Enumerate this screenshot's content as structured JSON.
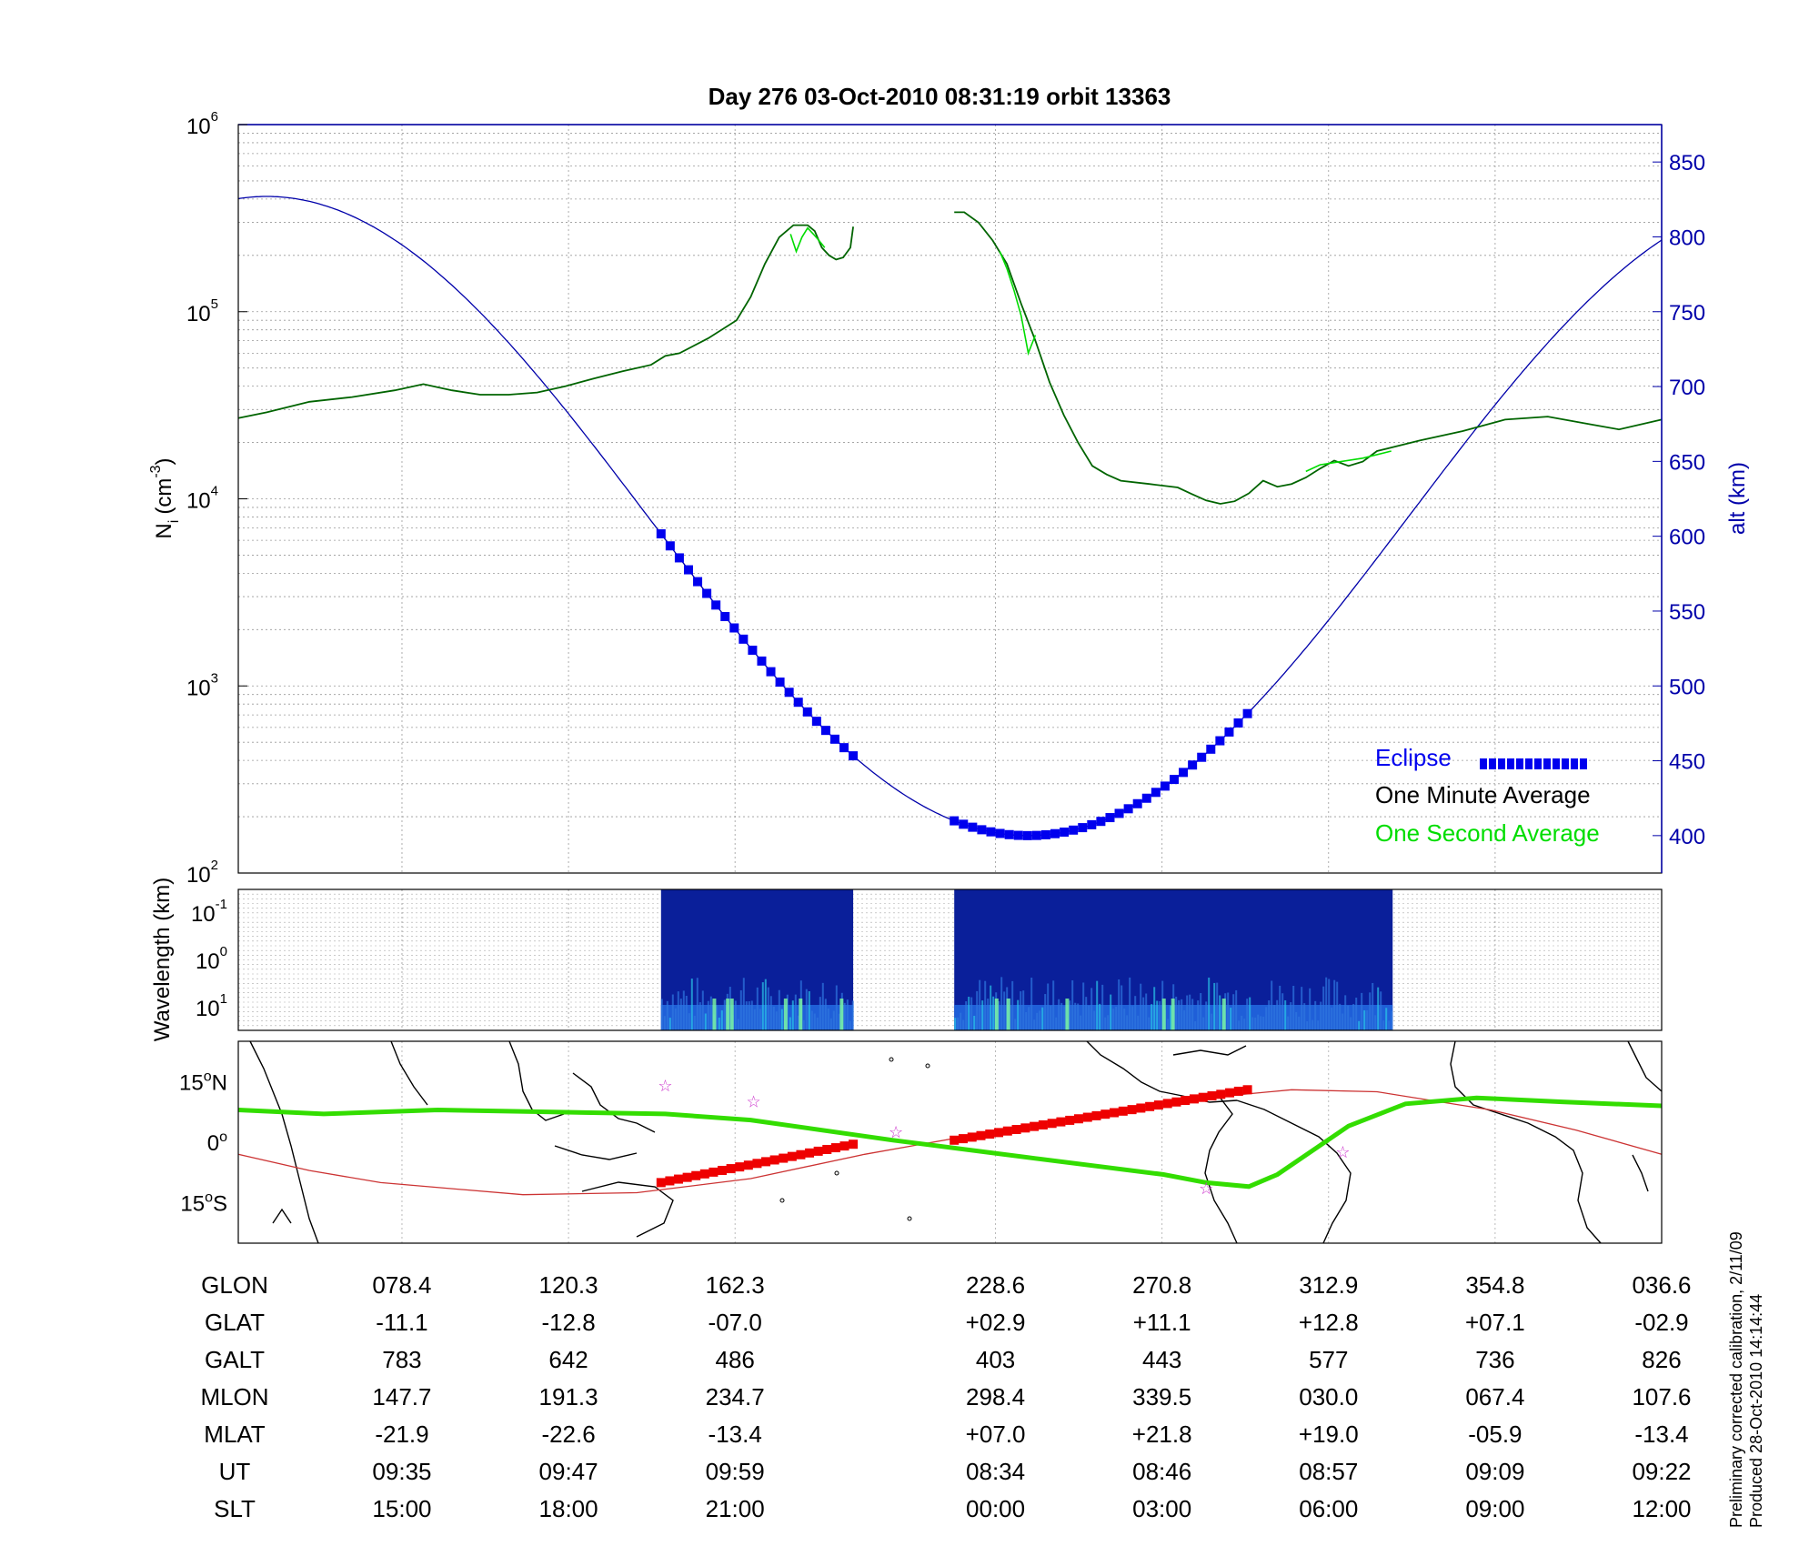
{
  "title": "Day 276  03-Oct-2010 08:31:19   orbit 13363",
  "footer": {
    "line1": "Preliminary corrected calibration, 2/11/09",
    "line2": "Produced 28-Oct-2010 14:14:44"
  },
  "colors": {
    "one_minute": "#006400",
    "one_second": "#00dd00",
    "altitude": "#0000aa",
    "eclipse": "#0000ee",
    "eclipse_map": "#ee0000",
    "ground_track_mag": "#33dd00",
    "ground_track_geo": "#cc3333",
    "star": "#cc33cc"
  },
  "chart_data": [
    {
      "type": "line",
      "name": "ion-density-panel",
      "ylabel": "N",
      "ylabel_sub": "i",
      "ylabel_unit": "(cm",
      "ylabel_sup": "-3",
      "ylabel_close": ")",
      "y_scale": "log",
      "ylim": [
        100,
        1000000
      ],
      "y_ticks": [
        {
          "base": "10",
          "exp": "2",
          "value": 100
        },
        {
          "base": "10",
          "exp": "3",
          "value": 1000
        },
        {
          "base": "10",
          "exp": "4",
          "value": 10000
        },
        {
          "base": "10",
          "exp": "5",
          "value": 100000
        },
        {
          "base": "10",
          "exp": "6",
          "value": 1000000
        }
      ],
      "y2label": "alt (km)",
      "y2lim": [
        375,
        875
      ],
      "y2_ticks": [
        "400",
        "450",
        "500",
        "550",
        "600",
        "650",
        "700",
        "750",
        "800",
        "850"
      ],
      "xlim": [
        0,
        1
      ],
      "grid": true,
      "legend": {
        "position": "bottom-right",
        "entries": [
          {
            "label": "Eclipse",
            "color": "#0000ee"
          },
          {
            "label": "One Minute Average",
            "color": "#000000"
          },
          {
            "label": "One Second Average",
            "color": "#00dd00"
          }
        ]
      },
      "series": [
        {
          "name": "One Minute Average",
          "segments": [
            [
              [
                0.0,
                27000
              ],
              [
                0.02,
                29000
              ],
              [
                0.05,
                33000
              ],
              [
                0.08,
                35000
              ],
              [
                0.11,
                38000
              ],
              [
                0.13,
                41000
              ],
              [
                0.15,
                38000
              ],
              [
                0.17,
                36000
              ],
              [
                0.19,
                36000
              ],
              [
                0.21,
                37000
              ],
              [
                0.23,
                40000
              ],
              [
                0.25,
                44000
              ],
              [
                0.27,
                48000
              ],
              [
                0.29,
                52000
              ],
              [
                0.3,
                58000
              ],
              [
                0.31,
                60000
              ],
              [
                0.33,
                72000
              ],
              [
                0.35,
                90000
              ],
              [
                0.36,
                120000
              ],
              [
                0.37,
                180000
              ],
              [
                0.38,
                250000
              ],
              [
                0.39,
                290000
              ],
              [
                0.4,
                290000
              ],
              [
                0.405,
                270000
              ],
              [
                0.41,
                220000
              ],
              [
                0.415,
                200000
              ],
              [
                0.42,
                190000
              ],
              [
                0.425,
                195000
              ],
              [
                0.43,
                220000
              ],
              [
                0.432,
                285000
              ]
            ],
            [
              [
                0.503,
                340000
              ],
              [
                0.51,
                340000
              ],
              [
                0.52,
                300000
              ],
              [
                0.53,
                240000
              ],
              [
                0.54,
                180000
              ],
              [
                0.55,
                110000
              ],
              [
                0.56,
                70000
              ],
              [
                0.57,
                42000
              ],
              [
                0.58,
                28000
              ],
              [
                0.59,
                20000
              ],
              [
                0.6,
                15000
              ],
              [
                0.61,
                13500
              ],
              [
                0.62,
                12500
              ],
              [
                0.64,
                12000
              ],
              [
                0.66,
                11500
              ],
              [
                0.67,
                10600
              ],
              [
                0.68,
                9800
              ],
              [
                0.69,
                9400
              ],
              [
                0.7,
                9700
              ],
              [
                0.71,
                10700
              ],
              [
                0.72,
                12500
              ],
              [
                0.73,
                11600
              ],
              [
                0.74,
                12000
              ],
              [
                0.75,
                13000
              ],
              [
                0.76,
                14500
              ],
              [
                0.77,
                16000
              ],
              [
                0.78,
                15000
              ],
              [
                0.79,
                15800
              ],
              [
                0.8,
                18000
              ],
              [
                0.83,
                20500
              ],
              [
                0.86,
                23000
              ],
              [
                0.89,
                26500
              ],
              [
                0.92,
                27500
              ],
              [
                0.95,
                25000
              ],
              [
                0.97,
                23500
              ],
              [
                1.0,
                26500
              ]
            ]
          ]
        },
        {
          "name": "One Second Average",
          "segments": [
            [
              [
                0.388,
                260000
              ],
              [
                0.392,
                210000
              ],
              [
                0.396,
                250000
              ],
              [
                0.4,
                280000
              ],
              [
                0.404,
                260000
              ],
              [
                0.408,
                240000
              ],
              [
                0.412,
                220000
              ]
            ],
            [
              [
                0.535,
                210000
              ],
              [
                0.54,
                170000
              ],
              [
                0.545,
                130000
              ],
              [
                0.55,
                95000
              ],
              [
                0.555,
                60000
              ],
              [
                0.56,
                75000
              ]
            ],
            [
              [
                0.75,
                14000
              ],
              [
                0.76,
                15200
              ],
              [
                0.79,
                16500
              ],
              [
                0.81,
                18000
              ]
            ]
          ]
        },
        {
          "name": "altitude",
          "axis": "right",
          "ygeo_fn": "orbit",
          "apogee_alt": 827,
          "apogee_x": 0.02,
          "perigee_alt": 400,
          "perigee_x": 0.555,
          "ylim_alt": [
            375,
            875
          ]
        },
        {
          "name": "Eclipse",
          "axis": "right",
          "segments": [
            [
              0.297,
              0.432
            ],
            [
              0.503,
              0.709
            ]
          ]
        }
      ]
    },
    {
      "type": "heatmap",
      "name": "wavelength-spectrogram",
      "ylabel": "Wavelength (km)",
      "y_ticks": [
        {
          "base": "10",
          "exp": "-1"
        },
        {
          "base": "10",
          "exp": "0"
        },
        {
          "base": "10",
          "exp": "1"
        }
      ],
      "blocks": [
        [
          0.297,
          0.432
        ],
        [
          0.503,
          0.811
        ]
      ]
    },
    {
      "type": "line",
      "name": "ground-track-map",
      "y_ticks": [
        {
          "label": "15",
          "deg": "o",
          "hemi": "N",
          "value": 15
        },
        {
          "label": "0",
          "deg": "o",
          "hemi": "",
          "value": 0
        },
        {
          "label": "15",
          "deg": "o",
          "hemi": "S",
          "value": -15
        }
      ],
      "ylim": [
        -25,
        25
      ],
      "series": [
        {
          "name": "magnetic-track",
          "points": [
            [
              0.0,
              8
            ],
            [
              0.06,
              7
            ],
            [
              0.14,
              8
            ],
            [
              0.3,
              7
            ],
            [
              0.36,
              5.5
            ],
            [
              0.46,
              0.5
            ],
            [
              0.56,
              -4
            ],
            [
              0.65,
              -8
            ],
            [
              0.68,
              -10
            ],
            [
              0.71,
              -11
            ],
            [
              0.73,
              -8
            ],
            [
              0.78,
              4
            ],
            [
              0.82,
              9.5
            ],
            [
              0.87,
              11
            ],
            [
              0.93,
              10
            ],
            [
              1.0,
              9
            ]
          ]
        },
        {
          "name": "geographic-track",
          "points": [
            [
              0.0,
              -3
            ],
            [
              0.05,
              -7
            ],
            [
              0.1,
              -10
            ],
            [
              0.2,
              -13
            ],
            [
              0.28,
              -12.5
            ],
            [
              0.36,
              -9
            ],
            [
              0.44,
              -3
            ],
            [
              0.52,
              2
            ],
            [
              0.6,
              7
            ],
            [
              0.68,
              11
            ],
            [
              0.74,
              13
            ],
            [
              0.8,
              12.5
            ],
            [
              0.88,
              8
            ],
            [
              0.94,
              3
            ],
            [
              1.0,
              -3
            ]
          ]
        },
        {
          "name": "eclipse-track",
          "segments": [
            [
              [
                0.297,
                -10
              ],
              [
                0.432,
                -0.5
              ]
            ],
            [
              [
                0.503,
                0.5
              ],
              [
                0.709,
                13
              ]
            ]
          ]
        },
        {
          "name": "stars",
          "points": [
            [
              0.3,
              14
            ],
            [
              0.362,
              10
            ],
            [
              0.462,
              2.5
            ],
            [
              0.68,
              -11.5
            ],
            [
              0.776,
              -2.5
            ]
          ]
        }
      ]
    },
    {
      "type": "table",
      "name": "orbit-table",
      "row_labels": [
        "GLON",
        "GLAT",
        "GALT",
        "MLON",
        "MLAT",
        "UT",
        "SLT"
      ],
      "column_x": [
        0.115,
        0.232,
        0.349,
        0.532,
        0.649,
        0.766,
        0.883,
        1.0
      ],
      "rows": [
        [
          "078.4",
          "120.3",
          "162.3",
          "228.6",
          "270.8",
          "312.9",
          "354.8",
          "036.6"
        ],
        [
          "-11.1",
          "-12.8",
          "-07.0",
          "+02.9",
          "+11.1",
          "+12.8",
          "+07.1",
          "-02.9"
        ],
        [
          "783",
          "642",
          "486",
          "403",
          "443",
          "577",
          "736",
          "826"
        ],
        [
          "147.7",
          "191.3",
          "234.7",
          "298.4",
          "339.5",
          "030.0",
          "067.4",
          "107.6"
        ],
        [
          "-21.9",
          "-22.6",
          "-13.4",
          "+07.0",
          "+21.8",
          "+19.0",
          "-05.9",
          "-13.4"
        ],
        [
          "09:35",
          "09:47",
          "09:59",
          "08:34",
          "08:46",
          "08:57",
          "09:09",
          "09:22"
        ],
        [
          "15:00",
          "18:00",
          "21:00",
          "00:00",
          "03:00",
          "06:00",
          "09:00",
          "12:00"
        ]
      ]
    }
  ]
}
